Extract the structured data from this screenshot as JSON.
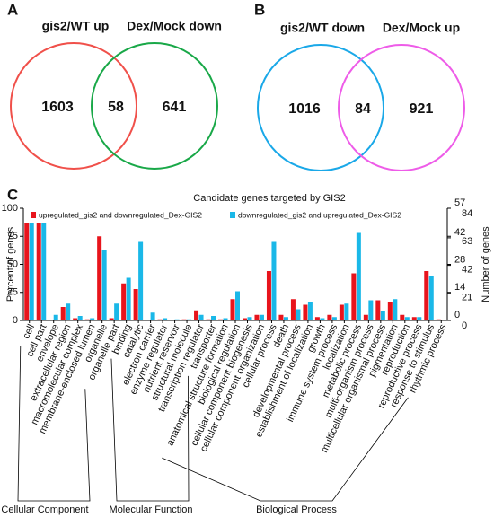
{
  "chart_data": [
    {
      "type": "venn",
      "label": "A",
      "sets": [
        {
          "name": "gis2/WT up",
          "color": "#f0504a"
        },
        {
          "name": "Dex/Mock down",
          "color": "#19a848"
        }
      ],
      "values": [
        1603,
        58,
        641
      ]
    },
    {
      "type": "venn",
      "label": "B",
      "sets": [
        {
          "name": "gis2/WT down",
          "color": "#1aa8e8"
        },
        {
          "name": "Dex/Mock up",
          "color": "#ee5ce8"
        }
      ],
      "values": [
        1016,
        84,
        921
      ]
    },
    {
      "type": "bar",
      "label": "C",
      "title": "Candidate genes targeted by GIS2",
      "ylabel": "Percent of genes",
      "y2label": "Number of genes",
      "categories": [
        "cell",
        "cell part",
        "envelope",
        "extracellular region",
        "macromolecular complex",
        "membrane-enclosed lumen",
        "organelle",
        "organelle part",
        "binding",
        "catalytic",
        "electron carrier",
        "enzyme regulator",
        "nutrient reservoir",
        "structural molecule",
        "transcription regulator",
        "transporter",
        "anatomical structure formation",
        "biological regulation",
        "cellular component biogenesis",
        "cellular component organization",
        "cellular process",
        "death",
        "developmental process",
        "establishment of localization",
        "growth",
        "immune system process",
        "localization",
        "metabolic process",
        "multi-organism process",
        "multicellular organismal process",
        "pigmentation",
        "reproduction",
        "reproductive process",
        "response to stimulus",
        "rhythmic process"
      ],
      "groups": [
        {
          "name": "Cellular Component",
          "span": 8
        },
        {
          "name": "Molecular Function",
          "span": 8
        },
        {
          "name": "Biological Process",
          "span": 19
        }
      ],
      "series": [
        {
          "name": "upregulated_gis2 and downregulated_Dex-GIS2",
          "color": "#e8141c",
          "values": [
            87,
            87,
            0,
            12,
            2,
            1,
            75,
            2,
            33,
            28,
            0,
            1,
            0,
            1,
            9,
            1,
            1,
            19,
            2,
            5,
            44,
            5,
            19,
            14,
            3,
            5,
            14,
            42,
            5,
            18,
            16,
            5,
            3,
            44,
            1
          ]
        },
        {
          "name": "downregulated_gis2 and upregulated_Dex-GIS2",
          "color": "#1ab8e8",
          "values": [
            87,
            87,
            5,
            15,
            4,
            2,
            63,
            15,
            38,
            70,
            7,
            2,
            1,
            1,
            5,
            4,
            2,
            26,
            3,
            5,
            70,
            3,
            10,
            16,
            2,
            3,
            15,
            78,
            18,
            8,
            19,
            3,
            3,
            40,
            0
          ]
        }
      ],
      "ylim": [
        0,
        100
      ],
      "yticks": [
        0,
        25,
        50,
        75,
        100
      ],
      "y2lim": [
        0,
        57
      ],
      "y2ticks": [
        0,
        14,
        28,
        42,
        57
      ],
      "y2color": "#e8141c",
      "y3lim": [
        0,
        84
      ],
      "y3ticks": [
        0,
        21,
        42,
        63,
        84
      ],
      "y3color": "#1ab8e8"
    }
  ]
}
